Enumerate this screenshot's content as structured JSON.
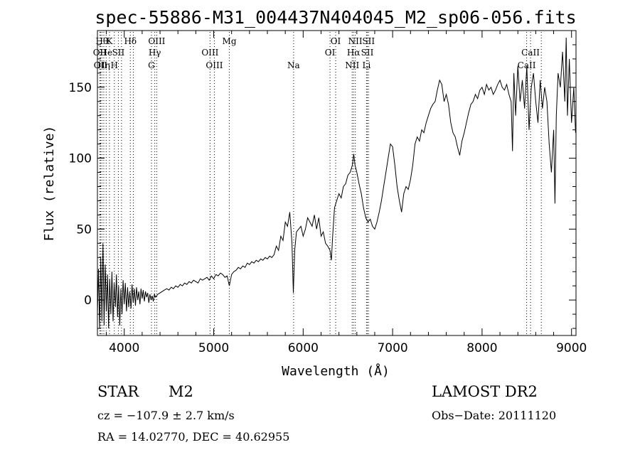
{
  "chart_data": {
    "type": "line",
    "title": "spec-55886-M31_004437N404045_M2_sp06-056.fits",
    "xlabel": "Wavelength (Å)",
    "ylabel": "Flux (relative)",
    "xlim": [
      3700,
      9050
    ],
    "ylim": [
      -25,
      190
    ],
    "xticks": [
      4000,
      5000,
      6000,
      7000,
      8000,
      9000
    ],
    "yticks": [
      0,
      50,
      100,
      150
    ],
    "grid": false,
    "spectrum": [
      [
        3700,
        -10
      ],
      [
        3712,
        22
      ],
      [
        3725,
        -20
      ],
      [
        3737,
        30
      ],
      [
        3750,
        -15
      ],
      [
        3762,
        40
      ],
      [
        3775,
        -18
      ],
      [
        3787,
        25
      ],
      [
        3800,
        -8
      ],
      [
        3812,
        18
      ],
      [
        3825,
        -20
      ],
      [
        3837,
        15
      ],
      [
        3850,
        -10
      ],
      [
        3862,
        20
      ],
      [
        3875,
        -15
      ],
      [
        3887,
        12
      ],
      [
        3900,
        -5
      ],
      [
        3912,
        18
      ],
      [
        3925,
        -12
      ],
      [
        3937,
        10
      ],
      [
        3950,
        -18
      ],
      [
        3962,
        8
      ],
      [
        3975,
        -10
      ],
      [
        3987,
        14
      ],
      [
        4000,
        -3
      ],
      [
        4012,
        12
      ],
      [
        4025,
        -8
      ],
      [
        4037,
        9
      ],
      [
        4050,
        -5
      ],
      [
        4062,
        6
      ],
      [
        4075,
        -6
      ],
      [
        4087,
        11
      ],
      [
        4100,
        -2
      ],
      [
        4112,
        8
      ],
      [
        4125,
        -4
      ],
      [
        4137,
        9
      ],
      [
        4150,
        0
      ],
      [
        4162,
        6
      ],
      [
        4175,
        -3
      ],
      [
        4187,
        8
      ],
      [
        4200,
        1
      ],
      [
        4212,
        7
      ],
      [
        4225,
        -1
      ],
      [
        4237,
        6
      ],
      [
        4250,
        2
      ],
      [
        4262,
        5
      ],
      [
        4275,
        -2
      ],
      [
        4287,
        4
      ],
      [
        4300,
        0
      ],
      [
        4312,
        3
      ],
      [
        4325,
        -1
      ],
      [
        4337,
        4
      ],
      [
        4350,
        2
      ],
      [
        4375,
        4
      ],
      [
        4400,
        5
      ],
      [
        4425,
        6
      ],
      [
        4450,
        7
      ],
      [
        4475,
        8
      ],
      [
        4500,
        7
      ],
      [
        4525,
        9
      ],
      [
        4550,
        8
      ],
      [
        4575,
        10
      ],
      [
        4600,
        9
      ],
      [
        4625,
        11
      ],
      [
        4650,
        10
      ],
      [
        4675,
        12
      ],
      [
        4700,
        11
      ],
      [
        4725,
        13
      ],
      [
        4750,
        12
      ],
      [
        4775,
        14
      ],
      [
        4800,
        13
      ],
      [
        4825,
        12
      ],
      [
        4850,
        15
      ],
      [
        4875,
        14
      ],
      [
        4900,
        15
      ],
      [
        4925,
        16
      ],
      [
        4950,
        14
      ],
      [
        4975,
        17
      ],
      [
        5000,
        15
      ],
      [
        5025,
        18
      ],
      [
        5050,
        17
      ],
      [
        5075,
        19
      ],
      [
        5100,
        18
      ],
      [
        5125,
        16
      ],
      [
        5150,
        17
      ],
      [
        5175,
        10
      ],
      [
        5200,
        18
      ],
      [
        5225,
        20
      ],
      [
        5250,
        21
      ],
      [
        5275,
        23
      ],
      [
        5300,
        22
      ],
      [
        5325,
        24
      ],
      [
        5350,
        23
      ],
      [
        5375,
        26
      ],
      [
        5400,
        25
      ],
      [
        5425,
        27
      ],
      [
        5450,
        26
      ],
      [
        5475,
        28
      ],
      [
        5500,
        27
      ],
      [
        5525,
        29
      ],
      [
        5550,
        28
      ],
      [
        5575,
        30
      ],
      [
        5600,
        29
      ],
      [
        5625,
        31
      ],
      [
        5650,
        30
      ],
      [
        5675,
        32
      ],
      [
        5700,
        38
      ],
      [
        5725,
        35
      ],
      [
        5750,
        45
      ],
      [
        5775,
        42
      ],
      [
        5800,
        55
      ],
      [
        5825,
        52
      ],
      [
        5850,
        62
      ],
      [
        5875,
        40
      ],
      [
        5890,
        5
      ],
      [
        5905,
        35
      ],
      [
        5925,
        48
      ],
      [
        5950,
        50
      ],
      [
        5975,
        52
      ],
      [
        6000,
        45
      ],
      [
        6025,
        50
      ],
      [
        6050,
        58
      ],
      [
        6075,
        55
      ],
      [
        6100,
        52
      ],
      [
        6125,
        60
      ],
      [
        6150,
        50
      ],
      [
        6175,
        58
      ],
      [
        6200,
        45
      ],
      [
        6225,
        48
      ],
      [
        6250,
        40
      ],
      [
        6275,
        38
      ],
      [
        6300,
        35
      ],
      [
        6315,
        28
      ],
      [
        6330,
        45
      ],
      [
        6350,
        65
      ],
      [
        6375,
        70
      ],
      [
        6400,
        75
      ],
      [
        6425,
        72
      ],
      [
        6450,
        80
      ],
      [
        6475,
        82
      ],
      [
        6500,
        88
      ],
      [
        6525,
        90
      ],
      [
        6550,
        95
      ],
      [
        6565,
        103
      ],
      [
        6580,
        95
      ],
      [
        6600,
        90
      ],
      [
        6625,
        82
      ],
      [
        6650,
        75
      ],
      [
        6675,
        65
      ],
      [
        6700,
        58
      ],
      [
        6725,
        55
      ],
      [
        6750,
        57
      ],
      [
        6775,
        52
      ],
      [
        6800,
        50
      ],
      [
        6825,
        55
      ],
      [
        6850,
        62
      ],
      [
        6875,
        70
      ],
      [
        6900,
        80
      ],
      [
        6925,
        90
      ],
      [
        6950,
        100
      ],
      [
        6975,
        110
      ],
      [
        7000,
        108
      ],
      [
        7025,
        95
      ],
      [
        7050,
        80
      ],
      [
        7075,
        70
      ],
      [
        7100,
        62
      ],
      [
        7125,
        75
      ],
      [
        7150,
        80
      ],
      [
        7175,
        78
      ],
      [
        7200,
        85
      ],
      [
        7225,
        95
      ],
      [
        7250,
        110
      ],
      [
        7275,
        115
      ],
      [
        7300,
        112
      ],
      [
        7325,
        120
      ],
      [
        7350,
        118
      ],
      [
        7375,
        125
      ],
      [
        7400,
        130
      ],
      [
        7425,
        135
      ],
      [
        7450,
        138
      ],
      [
        7475,
        140
      ],
      [
        7500,
        148
      ],
      [
        7525,
        155
      ],
      [
        7550,
        152
      ],
      [
        7575,
        140
      ],
      [
        7600,
        145
      ],
      [
        7625,
        138
      ],
      [
        7650,
        125
      ],
      [
        7675,
        118
      ],
      [
        7700,
        115
      ],
      [
        7725,
        108
      ],
      [
        7750,
        102
      ],
      [
        7775,
        112
      ],
      [
        7800,
        118
      ],
      [
        7825,
        125
      ],
      [
        7850,
        132
      ],
      [
        7875,
        138
      ],
      [
        7900,
        140
      ],
      [
        7925,
        145
      ],
      [
        7950,
        142
      ],
      [
        7975,
        148
      ],
      [
        8000,
        150
      ],
      [
        8025,
        145
      ],
      [
        8050,
        152
      ],
      [
        8075,
        148
      ],
      [
        8100,
        150
      ],
      [
        8125,
        145
      ],
      [
        8150,
        148
      ],
      [
        8175,
        152
      ],
      [
        8200,
        155
      ],
      [
        8225,
        150
      ],
      [
        8250,
        148
      ],
      [
        8275,
        152
      ],
      [
        8300,
        145
      ],
      [
        8325,
        140
      ],
      [
        8340,
        105
      ],
      [
        8355,
        160
      ],
      [
        8375,
        130
      ],
      [
        8400,
        165
      ],
      [
        8425,
        140
      ],
      [
        8450,
        155
      ],
      [
        8475,
        135
      ],
      [
        8500,
        165
      ],
      [
        8525,
        120
      ],
      [
        8550,
        150
      ],
      [
        8575,
        160
      ],
      [
        8600,
        140
      ],
      [
        8625,
        125
      ],
      [
        8650,
        155
      ],
      [
        8675,
        135
      ],
      [
        8700,
        150
      ],
      [
        8725,
        140
      ],
      [
        8750,
        110
      ],
      [
        8775,
        90
      ],
      [
        8800,
        120
      ],
      [
        8815,
        68
      ],
      [
        8830,
        130
      ],
      [
        8850,
        160
      ],
      [
        8875,
        150
      ],
      [
        8900,
        175
      ],
      [
        8925,
        140
      ],
      [
        8940,
        185
      ],
      [
        8955,
        130
      ],
      [
        8975,
        170
      ],
      [
        9000,
        125
      ],
      [
        9025,
        150
      ],
      [
        9045,
        118
      ]
    ],
    "spectral_lines": [
      {
        "wavelength": 3727,
        "label": "OII",
        "row": 2
      },
      {
        "wavelength": 3735,
        "label": "OII",
        "row": 3
      },
      {
        "wavelength": 3750,
        "label": "Hθ",
        "row": 1
      },
      {
        "wavelength": 3771,
        "label": "Hη",
        "row": 3
      },
      {
        "wavelength": 3798,
        "label": "He",
        "row": 2
      },
      {
        "wavelength": 3835,
        "label": "K",
        "row": 1
      },
      {
        "wavelength": 3889,
        "label": "H",
        "row": 3
      },
      {
        "wavelength": 3934,
        "label": "SII",
        "row": 2
      },
      {
        "wavelength": 3969,
        "label": "",
        "row": 0
      },
      {
        "wavelength": 4068,
        "label": "Hδ",
        "row": 1
      },
      {
        "wavelength": 4102,
        "label": "",
        "row": 0
      },
      {
        "wavelength": 4304,
        "label": "G",
        "row": 3
      },
      {
        "wavelength": 4341,
        "label": "Hγ",
        "row": 2
      },
      {
        "wavelength": 4363,
        "label": "OIII",
        "row": 1
      },
      {
        "wavelength": 4959,
        "label": "OIII",
        "row": 2
      },
      {
        "wavelength": 5007,
        "label": "OIII",
        "row": 3
      },
      {
        "wavelength": 5175,
        "label": "Mg",
        "row": 1
      },
      {
        "wavelength": 5893,
        "label": "Na",
        "row": 3
      },
      {
        "wavelength": 6300,
        "label": "OI",
        "row": 2
      },
      {
        "wavelength": 6363,
        "label": "OI",
        "row": 1
      },
      {
        "wavelength": 6548,
        "label": "NII",
        "row": 3
      },
      {
        "wavelength": 6563,
        "label": "Hα",
        "row": 2
      },
      {
        "wavelength": 6583,
        "label": "NII",
        "row": 1
      },
      {
        "wavelength": 6717,
        "label": "SII",
        "row": 2
      },
      {
        "wavelength": 6731,
        "label": "SII",
        "row": 1
      },
      {
        "wavelength": 6708,
        "label": "Li",
        "row": 3
      },
      {
        "wavelength": 8498,
        "label": "CaII",
        "row": 3
      },
      {
        "wavelength": 8542,
        "label": "CaII",
        "row": 2
      },
      {
        "wavelength": 8662,
        "label": "",
        "row": 0
      }
    ]
  },
  "info": {
    "object_class": "STAR",
    "subclass": "M2",
    "survey": "LAMOST DR2",
    "redshift_text": "cz = −107.9 ± 2.7 km/s",
    "obs_date_text": "Obs−Date: 20111120",
    "coords_text": "RA =  14.02770, DEC =  40.62955"
  }
}
